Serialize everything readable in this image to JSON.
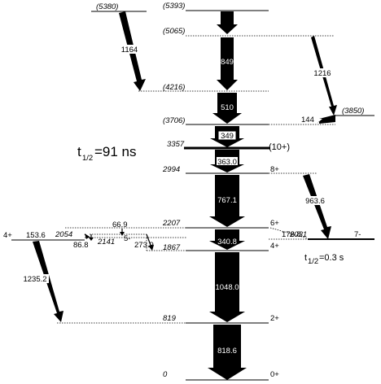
{
  "levels": [
    {
      "id": "l5393",
      "energy": "(5393)"
    },
    {
      "id": "l5380",
      "energy": "(5380)"
    },
    {
      "id": "l5065",
      "energy": "(5065)"
    },
    {
      "id": "l4216",
      "energy": "(4216)"
    },
    {
      "id": "l3850",
      "energy": "(3850)"
    },
    {
      "id": "l3706",
      "energy": "(3706)"
    },
    {
      "id": "l3357",
      "energy": "3357",
      "spin": "(10+)"
    },
    {
      "id": "l2994",
      "energy": "2994",
      "spin": "8+"
    },
    {
      "id": "l2207",
      "energy": "2207",
      "spin": "6+"
    },
    {
      "id": "l2031",
      "energy": "2031",
      "spin": "7-"
    },
    {
      "id": "l2054",
      "energy": "2054",
      "spin": "4+"
    },
    {
      "id": "l2141",
      "energy": "2141",
      "spin": "5-"
    },
    {
      "id": "l1867",
      "energy": "1867",
      "spin": "4+"
    },
    {
      "id": "l819",
      "energy": "819",
      "spin": "2+"
    },
    {
      "id": "l0",
      "energy": "0",
      "spin": "0+"
    }
  ],
  "transitions": [
    {
      "id": "t328",
      "label": "328"
    },
    {
      "id": "t849",
      "label": "849"
    },
    {
      "id": "t510",
      "label": "510"
    },
    {
      "id": "t349",
      "label": "349"
    },
    {
      "id": "t363",
      "label": "363.0"
    },
    {
      "id": "t767",
      "label": "767.1"
    },
    {
      "id": "t340",
      "label": "340.8"
    },
    {
      "id": "t1048",
      "label": "1048.0"
    },
    {
      "id": "t818",
      "label": "818.6"
    },
    {
      "id": "t1164",
      "label": "1164"
    },
    {
      "id": "t1216",
      "label": "1216"
    },
    {
      "id": "t144",
      "label": "144"
    },
    {
      "id": "t963",
      "label": "963.6"
    },
    {
      "id": "t66",
      "label": "66.9"
    },
    {
      "id": "t176",
      "label": "176.8"
    },
    {
      "id": "t153",
      "label": "153.6"
    },
    {
      "id": "t86",
      "label": "86.8"
    },
    {
      "id": "t273",
      "label": "273.9"
    },
    {
      "id": "t1235",
      "label": "1235.2"
    }
  ],
  "isomer_large": {
    "prefix": "t",
    "sub": "1/2",
    "value": "=91 ns"
  },
  "isomer_small": {
    "prefix": "t",
    "sub": "1/2",
    "value": "=0.3 s"
  }
}
